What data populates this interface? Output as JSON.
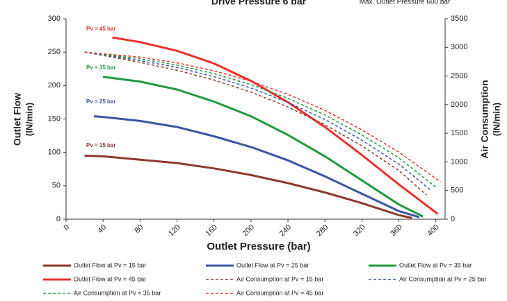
{
  "chart_data": {
    "type": "line",
    "title": "Drive Pressure 6 bar",
    "subtitle": "Max. Outlet Pressure 600 bar",
    "x_label": "Outlet Pressure (bar)",
    "y_label": [
      "Outlet Flow",
      "(lN/min)"
    ],
    "y2_label": [
      "Air Consumption",
      "(lN/min)"
    ],
    "xlim": [
      0,
      410
    ],
    "xticks": [
      0,
      40,
      80,
      120,
      160,
      200,
      240,
      280,
      320,
      360,
      400
    ],
    "ylim": [
      0,
      300
    ],
    "yticks": [
      0,
      50,
      100,
      150,
      200,
      250,
      300
    ],
    "y2lim": [
      0,
      3500
    ],
    "y2ticks": [
      0,
      500,
      1000,
      1500,
      2000,
      2500,
      3000,
      3500
    ],
    "grid": false,
    "legend": "bottom",
    "annotations": [
      {
        "text": "Pv = 45 bar",
        "color": "#e8302a"
      },
      {
        "text": "Pv = 35 bar",
        "color": "#1e9a3c"
      },
      {
        "text": "Pv = 25 bar",
        "color": "#3a55a4"
      },
      {
        "text": "Pv = 15 bar",
        "color": "#8b3a2a"
      }
    ],
    "series": [
      {
        "name": "Outlet Flow at Pv = 15 bar",
        "color": "#8b3a2a",
        "style": "solid",
        "x": [
          20,
          40,
          80,
          120,
          160,
          200,
          240,
          280,
          320,
          360,
          374
        ],
        "values": [
          95,
          94,
          89,
          84,
          76,
          66,
          54,
          40,
          24,
          6,
          2
        ]
      },
      {
        "name": "Outlet Flow at Pv = 25 bar",
        "color": "#3a55a4",
        "style": "solid",
        "x": [
          30,
          40,
          80,
          120,
          160,
          200,
          240,
          280,
          320,
          360,
          382
        ],
        "values": [
          154,
          153,
          147,
          138,
          124,
          108,
          88,
          64,
          38,
          12,
          3
        ]
      },
      {
        "name": "Outlet Flow at Pv = 35 bar",
        "color": "#1e9a3c",
        "style": "solid",
        "x": [
          40,
          80,
          120,
          160,
          200,
          240,
          280,
          320,
          360,
          386
        ],
        "values": [
          213,
          206,
          194,
          176,
          154,
          126,
          94,
          58,
          22,
          4
        ]
      },
      {
        "name": "Outlet Flow at Pv = 45 bar",
        "color": "#e8302a",
        "style": "solid",
        "x": [
          50,
          80,
          120,
          160,
          200,
          240,
          280,
          320,
          360,
          402
        ],
        "values": [
          272,
          265,
          252,
          233,
          207,
          175,
          138,
          96,
          52,
          8
        ]
      },
      {
        "name": "Air Consumption at Pv = 15 bar",
        "color": "#8b3a2a",
        "style": "dashed",
        "axis": "y2",
        "x": [
          20,
          80,
          120,
          160,
          200,
          240,
          280,
          320,
          360,
          390
        ],
        "values": [
          2917,
          2740,
          2600,
          2430,
          2220,
          1960,
          1650,
          1280,
          850,
          420
        ]
      },
      {
        "name": "Air Consumption at Pv = 25 bar",
        "color": "#3a55a4",
        "style": "dashed",
        "axis": "y2",
        "x": [
          20,
          80,
          120,
          160,
          200,
          240,
          280,
          320,
          360,
          395
        ],
        "values": [
          2917,
          2770,
          2650,
          2490,
          2290,
          2040,
          1740,
          1380,
          960,
          500
        ]
      },
      {
        "name": "Air Consumption at Pv = 35 bar",
        "color": "#1e9a3c",
        "style": "dashed",
        "axis": "y2",
        "x": [
          20,
          80,
          120,
          160,
          200,
          240,
          280,
          320,
          360,
          400
        ],
        "values": [
          2917,
          2800,
          2690,
          2540,
          2350,
          2110,
          1820,
          1470,
          1070,
          560
        ]
      },
      {
        "name": "Air Consumption at Pv = 45 bar",
        "color": "#e8302a",
        "style": "dashed",
        "axis": "y2",
        "x": [
          20,
          80,
          120,
          160,
          200,
          240,
          280,
          320,
          360,
          405
        ],
        "values": [
          2917,
          2830,
          2730,
          2590,
          2410,
          2180,
          1900,
          1560,
          1170,
          650
        ]
      }
    ]
  }
}
